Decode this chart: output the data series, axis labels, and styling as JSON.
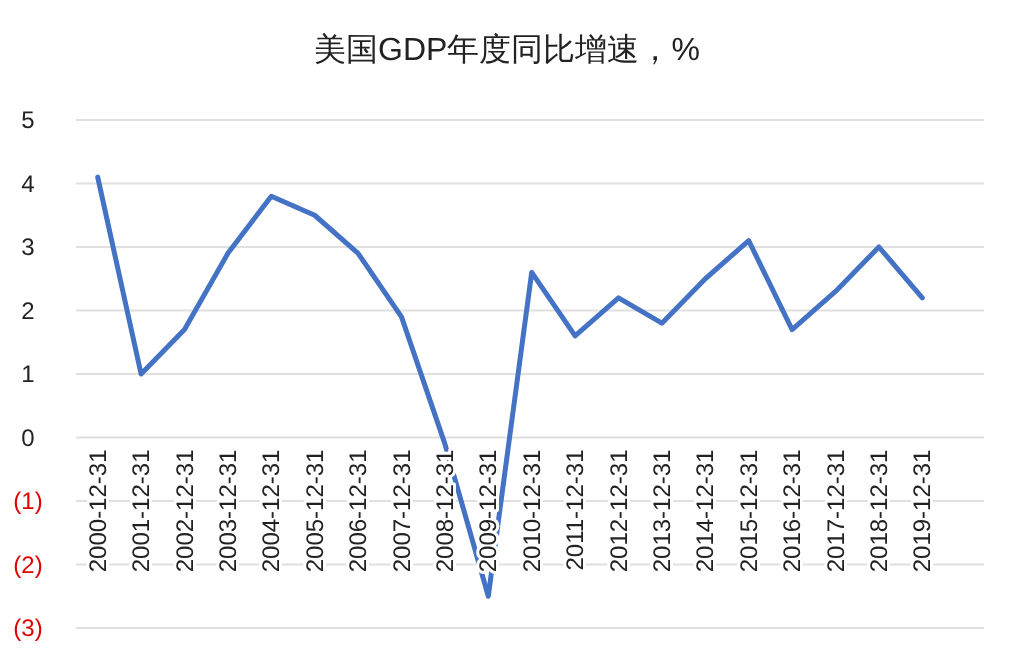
{
  "chart_data": {
    "type": "line",
    "title": "美国GDP年度同比增速，%",
    "categories": [
      "2000-12-31",
      "2001-12-31",
      "2002-12-31",
      "2003-12-31",
      "2004-12-31",
      "2005-12-31",
      "2006-12-31",
      "2007-12-31",
      "2008-12-31",
      "2009-12-31",
      "2010-12-31",
      "2011-12-31",
      "2012-12-31",
      "2013-12-31",
      "2014-12-31",
      "2015-12-31",
      "2016-12-31",
      "2017-12-31",
      "2018-12-31",
      "2019-12-31"
    ],
    "series": [
      {
        "color": "#4472c4",
        "values": [
          4.1,
          1.0,
          1.7,
          2.9,
          3.8,
          3.5,
          2.9,
          1.9,
          -0.1,
          -2.5,
          2.6,
          1.6,
          2.2,
          1.8,
          2.5,
          3.1,
          1.7,
          2.3,
          3.0,
          2.2
        ]
      }
    ],
    "ylim": [
      -3,
      5
    ],
    "yticks": [
      {
        "value": -3,
        "label": "(3)"
      },
      {
        "value": -2,
        "label": "(2)"
      },
      {
        "value": -1,
        "label": "(1)"
      },
      0,
      1,
      2,
      3,
      4,
      5
    ],
    "grid": "y",
    "marker": "none",
    "line_style": "solid"
  }
}
